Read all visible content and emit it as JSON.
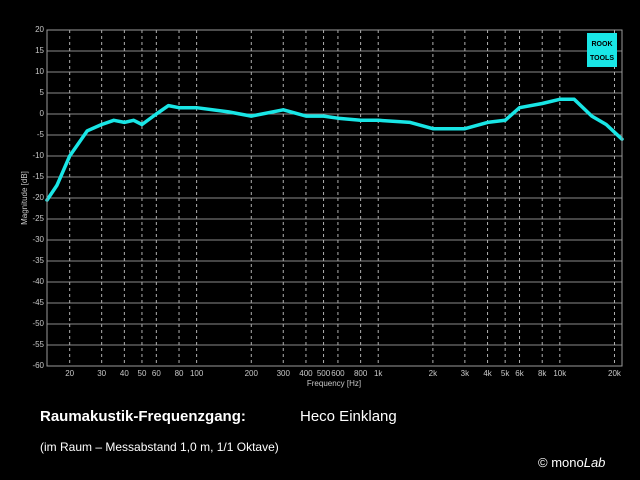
{
  "chart_data": {
    "type": "line",
    "xscale": "log",
    "grid": true,
    "xlabel": "Frequency [Hz]",
    "ylabel": "Magnitude [dB]",
    "x": [
      15,
      17,
      20,
      25,
      30,
      35,
      40,
      45,
      50,
      60,
      70,
      80,
      90,
      100,
      150,
      200,
      300,
      400,
      500,
      600,
      800,
      1000,
      1500,
      2000,
      3000,
      4000,
      5000,
      6000,
      8000,
      10000,
      12000,
      15000,
      18000,
      22000
    ],
    "series": [
      {
        "name": "Heco Einklang",
        "color": "#19e6e6",
        "values": [
          -20.5,
          -17,
          -10,
          -4,
          -2.5,
          -1.5,
          -2,
          -1.5,
          -2.5,
          0,
          2,
          1.5,
          1.5,
          1.5,
          0.5,
          -0.5,
          1,
          -0.5,
          -0.5,
          -1,
          -1.5,
          -1.5,
          -2,
          -3.5,
          -3.5,
          -2,
          -1.5,
          1.5,
          2.5,
          3.5,
          3.5,
          -0.5,
          -2.5,
          -6
        ]
      }
    ],
    "xlim": [
      15,
      22000
    ],
    "xticks": [
      20,
      30,
      40,
      50,
      60,
      80,
      100,
      200,
      300,
      400,
      500,
      600,
      800,
      {
        "value": 1000,
        "label": "1k"
      },
      {
        "value": 2000,
        "label": "2k"
      },
      {
        "value": 3000,
        "label": "3k"
      },
      {
        "value": 4000,
        "label": "4k"
      },
      {
        "value": 5000,
        "label": "5k"
      },
      {
        "value": 6000,
        "label": "6k"
      },
      {
        "value": 8000,
        "label": "8k"
      },
      {
        "value": 10000,
        "label": "10k"
      },
      {
        "value": 20000,
        "label": "20k"
      }
    ],
    "ylim": [
      -60,
      20
    ],
    "yticks": [
      -60,
      -55,
      -50,
      -45,
      -40,
      -35,
      -30,
      -25,
      -20,
      -15,
      -10,
      -5,
      0,
      5,
      10,
      15,
      20
    ]
  },
  "logo": [
    "ROOK",
    "TOOLS"
  ],
  "caption": {
    "title": "Raumakustik-Frequenzgang:",
    "name": "Heco Einklang",
    "note": "(im Raum – Messabstand 1,0 m, 1/1 Oktave)",
    "credit": "© mono",
    "brand": "Lab"
  }
}
